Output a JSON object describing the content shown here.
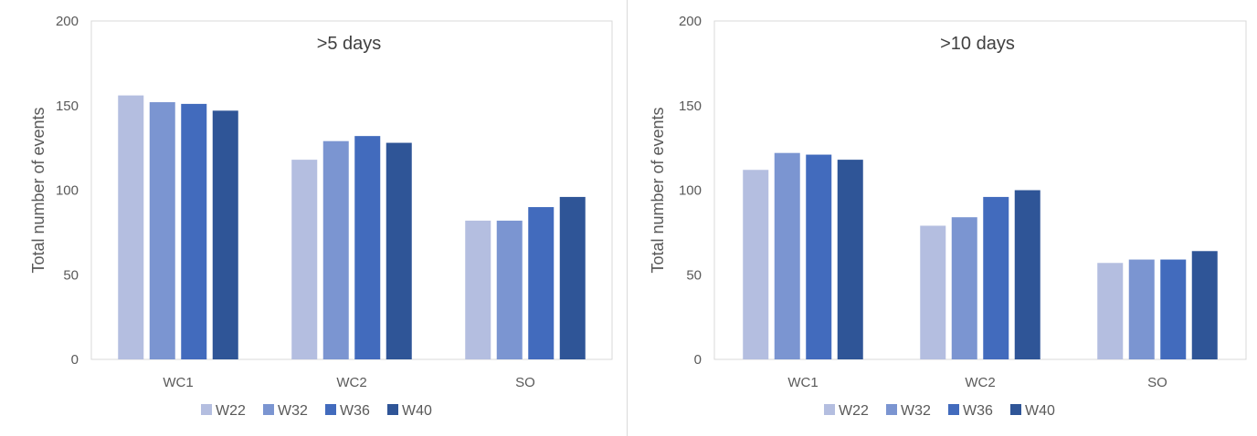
{
  "chart_data": [
    {
      "type": "bar",
      "title": ">5 days",
      "ylabel": "Total number of events",
      "xlabel": "",
      "ylim": [
        0,
        200
      ],
      "yticks": [
        0,
        50,
        100,
        150,
        200
      ],
      "categories": [
        "WC1",
        "WC2",
        "SO"
      ],
      "series": [
        {
          "name": "W22",
          "color": "#b4bee0",
          "values": [
            156,
            118,
            82
          ]
        },
        {
          "name": "W32",
          "color": "#7b95d1",
          "values": [
            152,
            129,
            82
          ]
        },
        {
          "name": "W36",
          "color": "#426bbd",
          "values": [
            151,
            132,
            90
          ]
        },
        {
          "name": "W40",
          "color": "#2f5597",
          "values": [
            147,
            128,
            96
          ]
        }
      ],
      "legend": "bottom",
      "grid": false
    },
    {
      "type": "bar",
      "title": ">10 days",
      "ylabel": "Total number of events",
      "xlabel": "",
      "ylim": [
        0,
        200
      ],
      "yticks": [
        0,
        50,
        100,
        150,
        200
      ],
      "categories": [
        "WC1",
        "WC2",
        "SO"
      ],
      "series": [
        {
          "name": "W22",
          "color": "#b4bee0",
          "values": [
            112,
            79,
            57
          ]
        },
        {
          "name": "W32",
          "color": "#7b95d1",
          "values": [
            122,
            84,
            59
          ]
        },
        {
          "name": "W36",
          "color": "#426bbd",
          "values": [
            121,
            96,
            59
          ]
        },
        {
          "name": "W40",
          "color": "#2f5597",
          "values": [
            118,
            100,
            64
          ]
        }
      ],
      "legend": "bottom",
      "grid": false
    }
  ]
}
